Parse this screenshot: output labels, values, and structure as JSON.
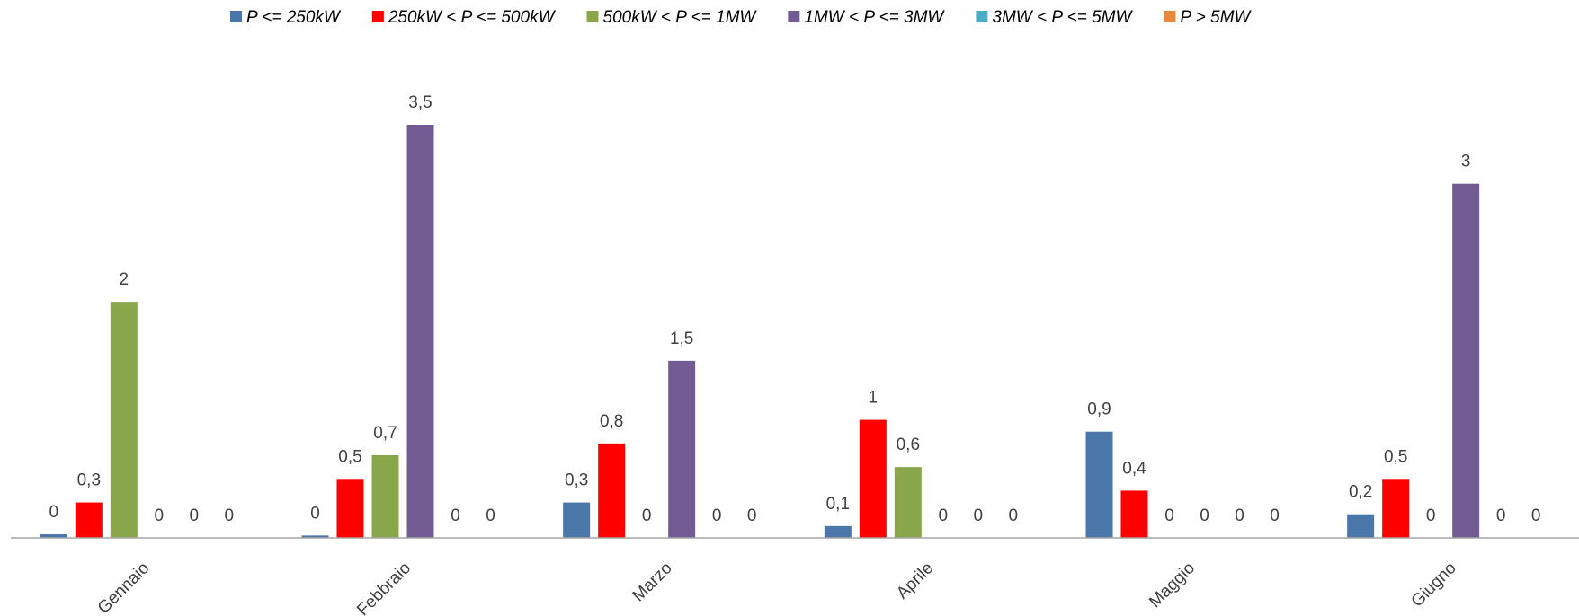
{
  "chart_data": {
    "type": "bar",
    "categories": [
      "Gennaio",
      "Febbraio",
      "Marzo",
      "Aprile",
      "Maggio",
      "Giugno"
    ],
    "series": [
      {
        "name": "P <= 250kW",
        "color": "#4a76aa",
        "values": [
          0.03,
          0.02,
          0.3,
          0.1,
          0.9,
          0.2
        ],
        "value_labels": [
          "0",
          "0",
          "0,3",
          "0,1",
          "0,9",
          "0,2"
        ]
      },
      {
        "name": "250kW < P <= 500kW",
        "color": "#ff0000",
        "values": [
          0.3,
          0.5,
          0.8,
          1,
          0.4,
          0.5
        ],
        "value_labels": [
          "0,3",
          "0,5",
          "0,8",
          "1",
          "0,4",
          "0,5"
        ]
      },
      {
        "name": "500kW < P <= 1MW",
        "color": "#8aa64b",
        "values": [
          2,
          0.7,
          0,
          0.6,
          0,
          0
        ],
        "value_labels": [
          "2",
          "0,7",
          "0",
          "0,6",
          "0",
          "0"
        ]
      },
      {
        "name": "1MW < P <= 3MW",
        "color": "#725a92",
        "values": [
          0,
          3.5,
          1.5,
          0,
          0,
          3
        ],
        "value_labels": [
          "0",
          "3,5",
          "1,5",
          "0",
          "0",
          "3"
        ]
      },
      {
        "name": "3MW < P <= 5MW",
        "color": "#4bacc6",
        "values": [
          0,
          0,
          0,
          0,
          0,
          0
        ],
        "value_labels": [
          "0",
          "0",
          "0",
          "0",
          "0",
          "0"
        ]
      },
      {
        "name": "P > 5MW",
        "color": "#e88a3c",
        "values": [
          0,
          0,
          0,
          0,
          0,
          0
        ],
        "value_labels": [
          "0",
          "0",
          "0",
          "0",
          "0",
          "0"
        ]
      }
    ]
  }
}
